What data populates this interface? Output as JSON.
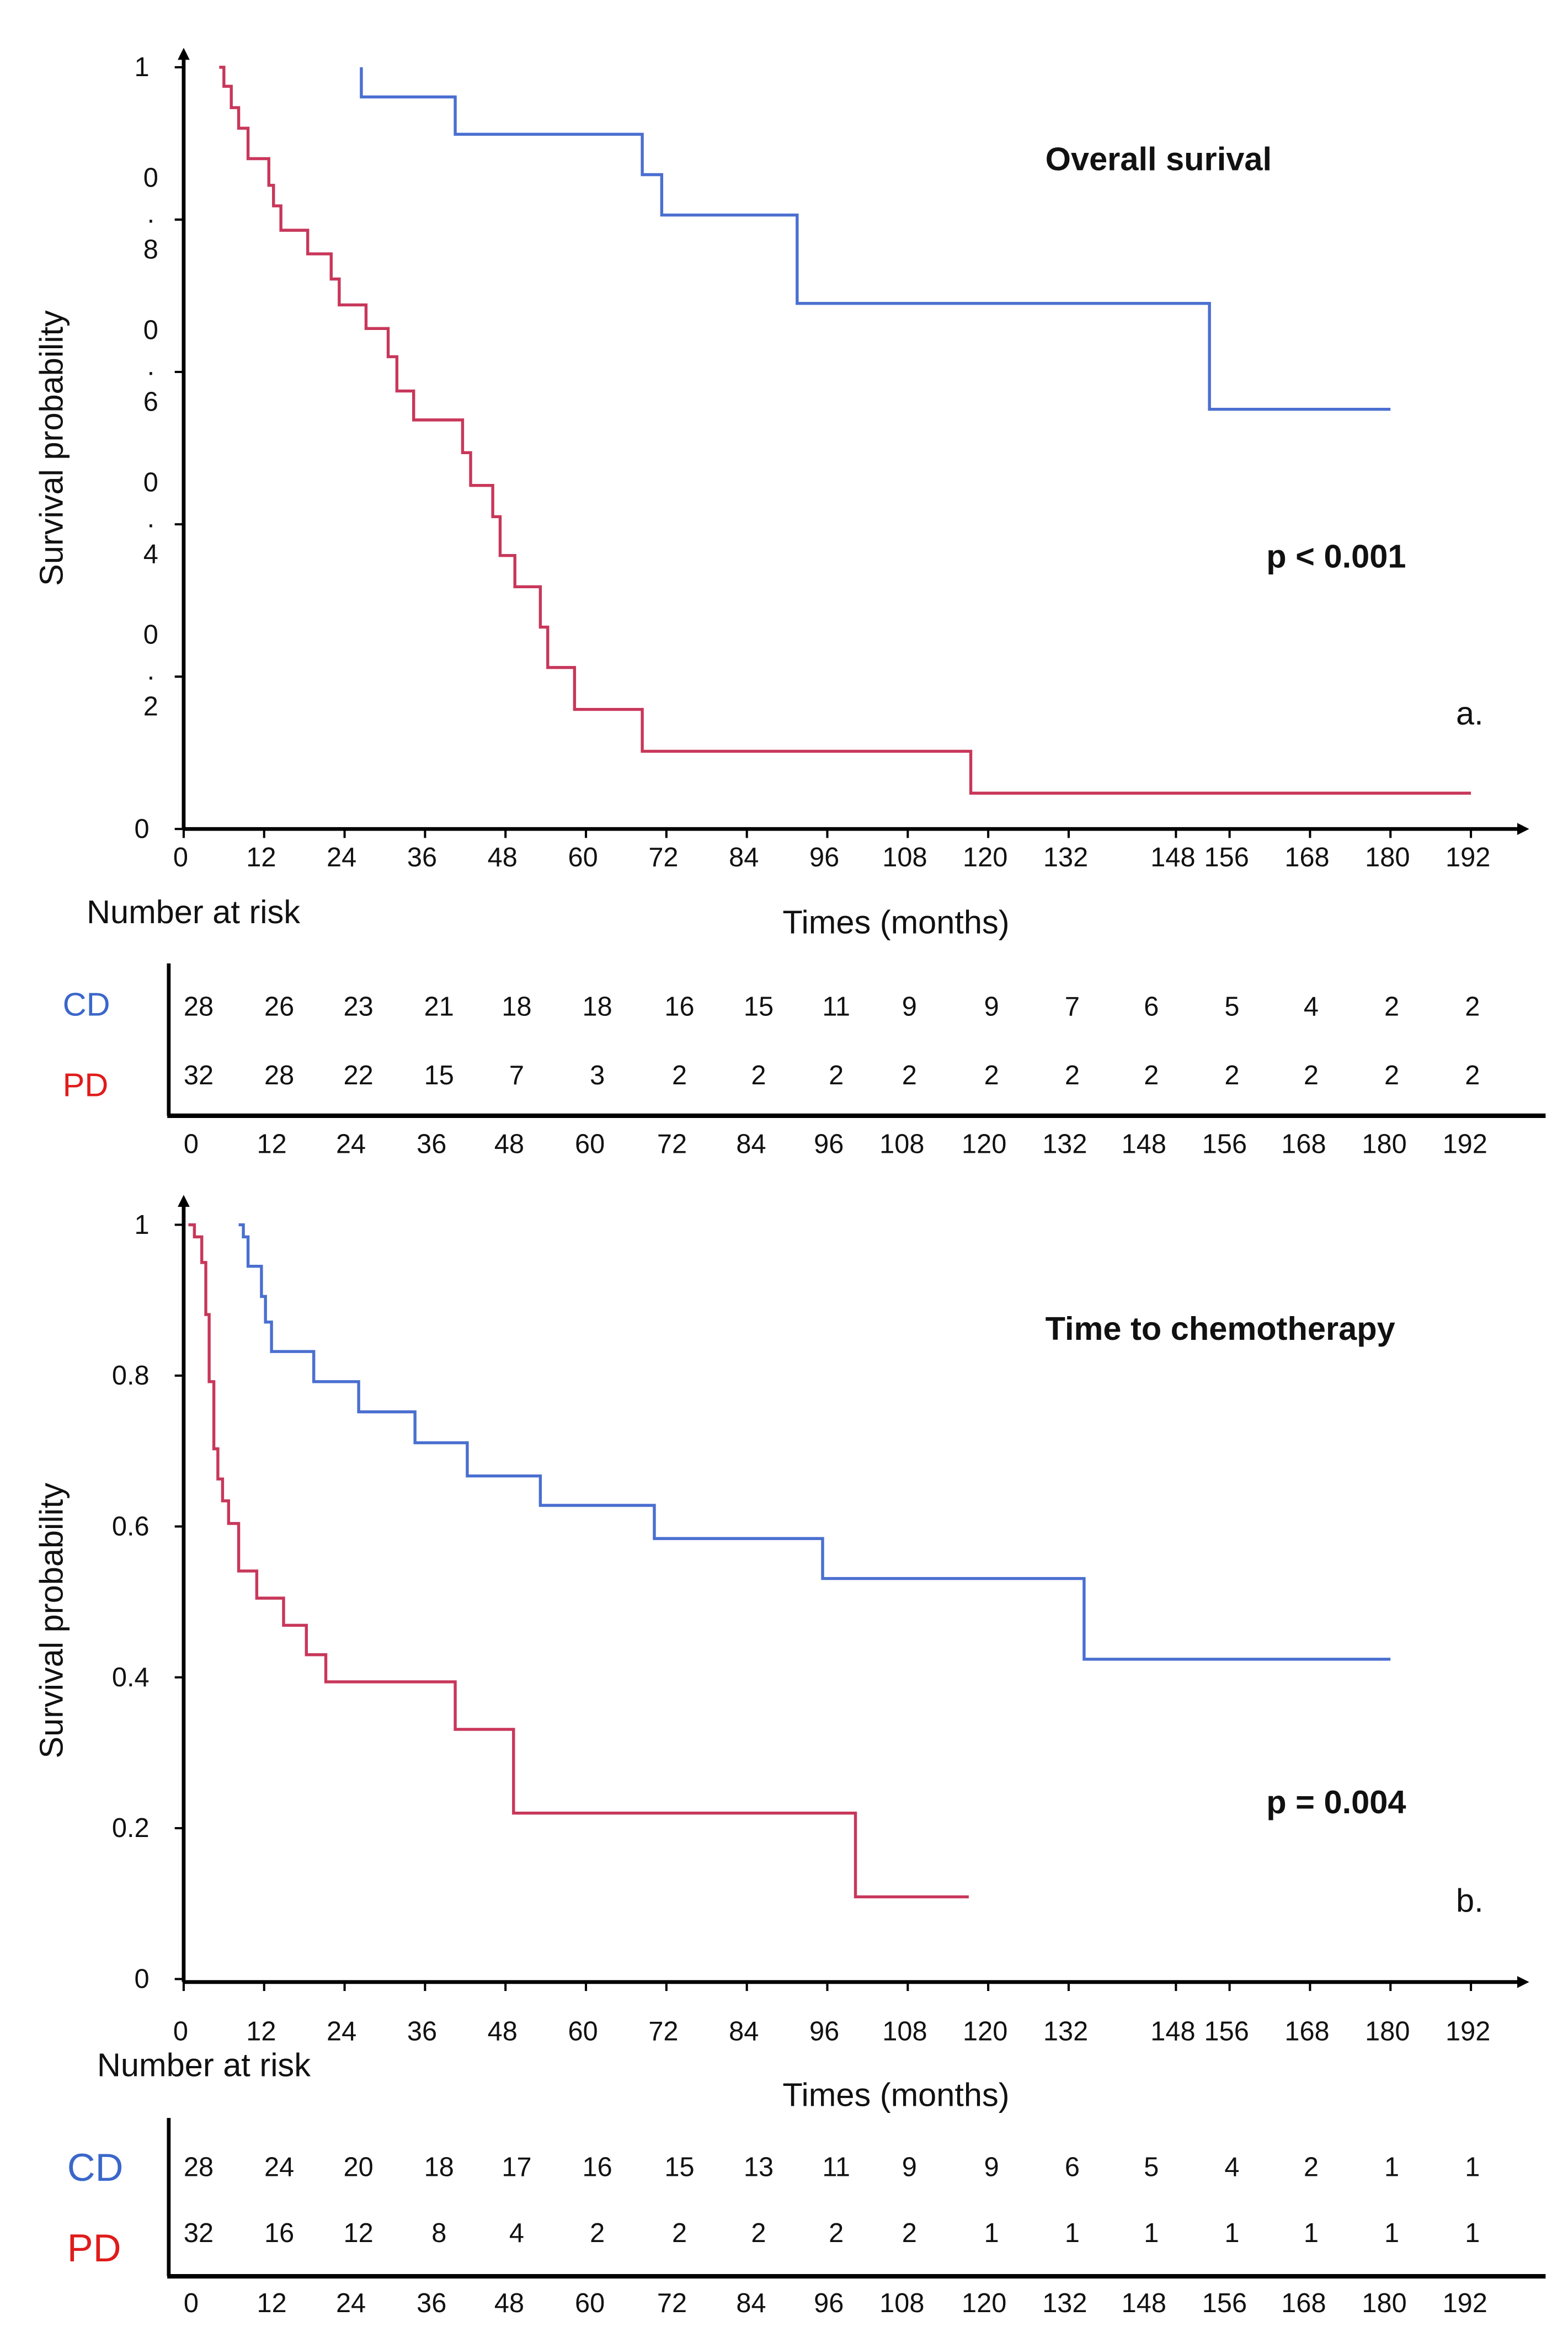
{
  "colors": {
    "cd": "#4a6fd0",
    "pd": "#c8375a",
    "cd_label": "#3a67c9",
    "pd_label": "#e01b1b"
  },
  "chart_data": [
    {
      "type": "line",
      "id": "a",
      "title": "Overall surival",
      "panel_label": "a.",
      "p_value": "p < 0.001",
      "xlabel": "Times (months)",
      "ylabel": "Survival probability",
      "xlim": [
        0,
        192
      ],
      "ylim": [
        0,
        1
      ],
      "x_ticks": [
        "0",
        "12",
        "24",
        "36",
        "48",
        "60",
        "72",
        "84",
        "96",
        "108",
        "120",
        "132",
        "148",
        "156",
        "168",
        "180",
        "192"
      ],
      "y_ticks": [
        {
          "v": 1,
          "label": "1"
        },
        {
          "v": 0.8,
          "label": "0.8"
        },
        {
          "v": 0.6,
          "label": "0.6"
        },
        {
          "v": 0.4,
          "label": "0.4"
        },
        {
          "v": 0.2,
          "label": "0.2"
        },
        {
          "v": 0,
          "label": "0"
        }
      ],
      "y_ticks_stacked": true,
      "series": [
        {
          "name": "CD",
          "color_key": "cd",
          "start": [
            26.5,
            1.0
          ],
          "end": 180,
          "steps": [
            [
              26.5,
              0.961
            ],
            [
              40.5,
              0.912
            ],
            [
              68.4,
              0.859
            ],
            [
              71.3,
              0.806
            ],
            [
              91.5,
              0.69
            ],
            [
              153,
              0.551
            ]
          ]
        },
        {
          "name": "PD",
          "color_key": "pd",
          "start": [
            5.3,
            1.0
          ],
          "end": 192,
          "steps": [
            [
              6.0,
              0.975
            ],
            [
              7.1,
              0.947
            ],
            [
              8.2,
              0.92
            ],
            [
              9.6,
              0.88
            ],
            [
              12.7,
              0.845
            ],
            [
              13.4,
              0.818
            ],
            [
              14.5,
              0.786
            ],
            [
              18.5,
              0.755
            ],
            [
              22.0,
              0.722
            ],
            [
              23.2,
              0.688
            ],
            [
              27.2,
              0.657
            ],
            [
              30.5,
              0.62
            ],
            [
              31.8,
              0.575
            ],
            [
              34.3,
              0.537
            ],
            [
              41.6,
              0.494
            ],
            [
              42.8,
              0.451
            ],
            [
              46.1,
              0.41
            ],
            [
              47.2,
              0.359
            ],
            [
              49.4,
              0.318
            ],
            [
              53.2,
              0.265
            ],
            [
              54.3,
              0.212
            ],
            [
              58.3,
              0.157
            ],
            [
              68.4,
              0.102
            ],
            [
              117.4,
              0.047
            ]
          ]
        }
      ],
      "risk_table": {
        "title": "Number at risk",
        "times": [
          "0",
          "12",
          "24",
          "36",
          "48",
          "60",
          "72",
          "84",
          "96",
          "108",
          "120",
          "132",
          "148",
          "156",
          "168",
          "180",
          "192"
        ],
        "rows": [
          {
            "label": "CD",
            "color_key": "cd_label",
            "values": [
              "28",
              "26",
              "23",
              "21",
              "18",
              "18",
              "16",
              "15",
              "11",
              "9",
              "9",
              "7",
              "6",
              "5",
              "4",
              "2",
              "2"
            ]
          },
          {
            "label": "PD",
            "color_key": "pd_label",
            "values": [
              "32",
              "28",
              "22",
              "15",
              "7",
              "3",
              "2",
              "2",
              "2",
              "2",
              "2",
              "2",
              "2",
              "2",
              "2",
              "2",
              "2"
            ]
          }
        ]
      }
    },
    {
      "type": "line",
      "id": "b",
      "title": "Time to chemotherapy",
      "panel_label": "b.",
      "p_value": "p = 0.004",
      "xlabel": "Times (months)",
      "ylabel": "Survival probability",
      "xlim": [
        0,
        192
      ],
      "ylim": [
        0,
        1
      ],
      "x_ticks": [
        "0",
        "12",
        "24",
        "36",
        "48",
        "60",
        "72",
        "84",
        "96",
        "108",
        "120",
        "132",
        "148",
        "156",
        "168",
        "180",
        "192"
      ],
      "y_ticks": [
        {
          "v": 1,
          "label": "1"
        },
        {
          "v": 0.8,
          "label": "0.8"
        },
        {
          "v": 0.6,
          "label": "0.6"
        },
        {
          "v": 0.4,
          "label": "0.4"
        },
        {
          "v": 0.2,
          "label": "0.2"
        },
        {
          "v": 0,
          "label": "0"
        }
      ],
      "y_ticks_stacked": false,
      "series": [
        {
          "name": "CD",
          "color_key": "cd",
          "start": [
            8.2,
            1.0
          ],
          "end": 180,
          "steps": [
            [
              8.9,
              0.984
            ],
            [
              9.6,
              0.945
            ],
            [
              11.6,
              0.905
            ],
            [
              12.2,
              0.871
            ],
            [
              13.1,
              0.832
            ],
            [
              19.4,
              0.792
            ],
            [
              26.1,
              0.752
            ],
            [
              34.5,
              0.711
            ],
            [
              42.3,
              0.667
            ],
            [
              53.2,
              0.628
            ],
            [
              70.2,
              0.584
            ],
            [
              95.3,
              0.531
            ],
            [
              134.3,
              0.424
            ]
          ]
        },
        {
          "name": "PD",
          "color_key": "pd",
          "start": [
            0.7,
            1.0
          ],
          "end": 117.1,
          "steps": [
            [
              1.6,
              0.984
            ],
            [
              2.7,
              0.95
            ],
            [
              3.3,
              0.881
            ],
            [
              3.8,
              0.792
            ],
            [
              4.5,
              0.703
            ],
            [
              5.1,
              0.663
            ],
            [
              5.8,
              0.634
            ],
            [
              6.7,
              0.604
            ],
            [
              8.2,
              0.541
            ],
            [
              10.9,
              0.505
            ],
            [
              14.9,
              0.469
            ],
            [
              18.3,
              0.43
            ],
            [
              21.2,
              0.394
            ],
            [
              40.5,
              0.331
            ],
            [
              49.2,
              0.22
            ],
            [
              100.2,
              0.109
            ]
          ]
        }
      ],
      "risk_table": {
        "title": "Number at risk",
        "times": [
          "0",
          "12",
          "24",
          "36",
          "48",
          "60",
          "72",
          "84",
          "96",
          "108",
          "120",
          "132",
          "148",
          "156",
          "168",
          "180",
          "192"
        ],
        "rows": [
          {
            "label": "CD",
            "color_key": "cd_label",
            "values": [
              "28",
              "24",
              "20",
              "18",
              "17",
              "16",
              "15",
              "13",
              "11",
              "9",
              "9",
              "6",
              "5",
              "4",
              "2",
              "1",
              "1"
            ]
          },
          {
            "label": "PD",
            "color_key": "pd_label",
            "values": [
              "32",
              "16",
              "12",
              "8",
              "4",
              "2",
              "2",
              "2",
              "2",
              "2",
              "1",
              "1",
              "1",
              "1",
              "1",
              "1",
              "1"
            ]
          }
        ]
      }
    }
  ]
}
